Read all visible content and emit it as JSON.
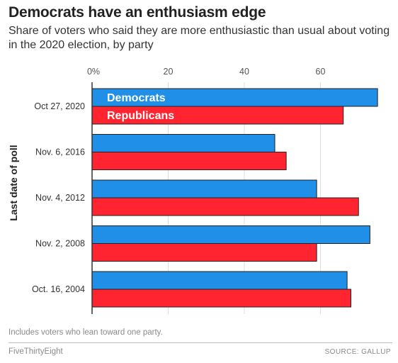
{
  "header": {
    "title": "Democrats have an enthusiasm edge",
    "subtitle": "Share of voters who said they are more enthusiastic than usual about voting in the 2020 election, by party"
  },
  "footer": {
    "note": "Includes voters who lean toward one party.",
    "brand": "FiveThirtyEight",
    "source": "SOURCE: GALLUP"
  },
  "colors": {
    "democrats": "#1f8fe8",
    "republicans": "#ff2430",
    "grid": "#dddddd",
    "axis": "#333333"
  },
  "chart_data": {
    "type": "bar",
    "orientation": "horizontal",
    "ylabel": "Last date of poll",
    "xlim": [
      0,
      75
    ],
    "xticks": [
      0,
      20,
      40,
      60
    ],
    "xtick_labels": [
      "0%",
      "20",
      "40",
      "60"
    ],
    "grid": true,
    "categories": [
      "Oct 27, 2020",
      "Nov. 6, 2016",
      "Nov. 4, 2012",
      "Nov. 2, 2008",
      "Oct. 16, 2004"
    ],
    "series": [
      {
        "name": "Democrats",
        "color": "#1f8fe8",
        "values": [
          75,
          48,
          59,
          73,
          67
        ]
      },
      {
        "name": "Republicans",
        "color": "#ff2430",
        "values": [
          66,
          51,
          70,
          59,
          68
        ]
      }
    ],
    "legend": "inside-first-group"
  }
}
